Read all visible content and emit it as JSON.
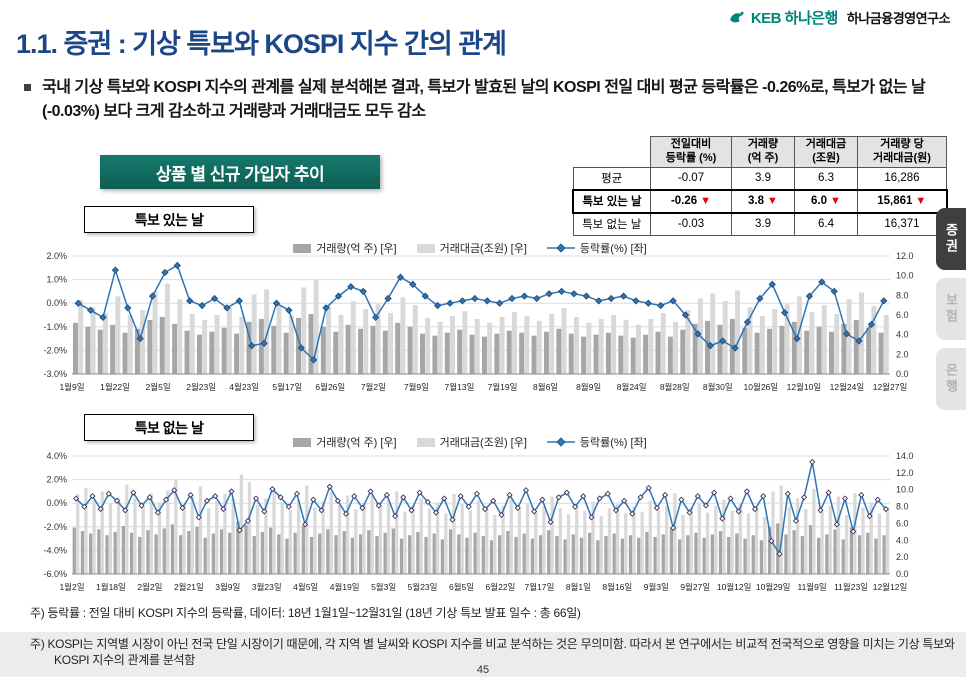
{
  "header": {
    "logo_bank": "KEB 하나은행",
    "logo_institute": "하나금융경영연구소"
  },
  "title": "1.1. 증권 : 기상 특보와 KOSPI 지수 간의 관계",
  "bullet_text": "국내 기상 특보와 KOSPI 지수의 관계를 실제 분석해본 결과, 특보가 발효된 날의 KOSPI 전일 대비 평균 등락률은 -0.26%로, 특보가 없는 날(-0.03%) 보다 크게 감소하고 거래량과 거래대금도 모두 감소",
  "banner": {
    "label": "상품 별 신규 가입자 추이"
  },
  "table": {
    "down_arrow": "▼",
    "headers": [
      "전일대비\n등락률 (%)",
      "거래량\n(억 주)",
      "거래대금\n(조원)",
      "거래량 당\n거래대금(원)"
    ],
    "rows": [
      {
        "label": "평균",
        "values": [
          "-0.07",
          "3.9",
          "6.3",
          "16,286"
        ],
        "bold": false,
        "arrows": false
      },
      {
        "label": "특보 있는 날",
        "values": [
          "-0.26",
          "3.8",
          "6.0",
          "15,861"
        ],
        "bold": true,
        "arrows": true
      },
      {
        "label": "특보 없는 날",
        "values": [
          "-0.03",
          "3.9",
          "6.4",
          "16,371"
        ],
        "bold": false,
        "arrows": false
      }
    ]
  },
  "side_tabs": [
    {
      "label": "증권",
      "active": true
    },
    {
      "label": "보험",
      "active": false
    },
    {
      "label": "은행",
      "active": false
    }
  ],
  "legend": {
    "volume": "거래량(억 주) [우]",
    "value": "거래대금(조원) [우]",
    "rate": "등락률(%) [좌]"
  },
  "footnotes": {
    "footnote1": "주) 등락률 : 전일 대비 KOSPI 지수의 등락률, 데이터: 18년 1월1일~12월31일 (18년 기상 특보 발표 일수 : 총 66일)",
    "footnote2": "주) KOSPI는 지역별 시장이 아닌 전국 단일 시장이기 때문에, 각 지역 별 날씨와 KOSPI 지수를 비교 분석하는 것은 무의미함. 따라서 본 연구에서는 비교적 전국적으로 영향을 미치는 기상 특보와 KOSPI 지수의 관계를 분석함"
  },
  "page_number": "45",
  "chart_data": [
    {
      "type": "bar",
      "subtype": "combo bar+line",
      "name": "warning-days-chart",
      "title": "특보 있는 날",
      "left_axis": {
        "min": -3,
        "max": 2,
        "ticks": [
          "2.0%",
          "1.0%",
          "0.0%",
          "-1.0%",
          "-2.0%",
          "-3.0%"
        ]
      },
      "right_axis": {
        "min": 0,
        "max": 12,
        "ticks": [
          "12.0",
          "10.0",
          "8.0",
          "6.0",
          "4.0",
          "2.0",
          "0.0"
        ]
      },
      "grid": true,
      "x_tick_labels": [
        "1월9일",
        "1월22일",
        "2월5일",
        "2월23일",
        "4월23일",
        "5월17일",
        "6월26일",
        "7월2일",
        "7월9일",
        "7월13일",
        "7월19일",
        "8월6일",
        "8월9일",
        "8월24일",
        "8월28일",
        "8월30일",
        "10월26일",
        "12월10일",
        "12월24일",
        "12월27일"
      ],
      "series": [
        {
          "name": "거래량(억 주) [우]",
          "type": "bar",
          "axis": "right",
          "color": "#a6a6a6",
          "values": [
            5.2,
            4.8,
            4.5,
            5.0,
            4.2,
            4.6,
            5.5,
            5.8,
            5.1,
            4.4,
            4.0,
            4.3,
            4.7,
            4.1,
            5.3,
            5.6,
            4.9,
            4.2,
            5.7,
            6.1,
            4.8,
            4.3,
            5.0,
            4.6,
            4.9,
            4.4,
            5.2,
            4.8,
            4.1,
            3.9,
            4.2,
            4.5,
            4.0,
            3.8,
            4.1,
            4.4,
            4.2,
            3.9,
            4.3,
            4.6,
            4.1,
            3.8,
            4.0,
            4.2,
            3.9,
            3.7,
            4.0,
            4.3,
            3.8,
            4.5,
            5.1,
            5.4,
            5.0,
            5.6,
            4.7,
            4.2,
            4.6,
            4.9,
            5.3,
            4.4,
            4.8,
            4.3,
            5.1,
            5.5,
            4.7,
            4.2
          ]
        },
        {
          "name": "거래대금(조원) [우]",
          "type": "bar",
          "axis": "right",
          "color": "#d9d9d9",
          "values": [
            7.5,
            6.8,
            6.2,
            7.9,
            6.0,
            6.5,
            8.4,
            9.2,
            7.6,
            6.1,
            5.5,
            6.0,
            6.8,
            5.8,
            8.1,
            8.6,
            7.0,
            5.9,
            8.8,
            9.6,
            6.9,
            6.0,
            7.4,
            6.6,
            7.1,
            6.2,
            7.8,
            7.0,
            5.7,
            5.3,
            5.9,
            6.4,
            5.6,
            5.2,
            5.8,
            6.3,
            5.9,
            5.4,
            6.1,
            6.7,
            5.8,
            5.2,
            5.6,
            6.0,
            5.5,
            5.0,
            5.6,
            6.2,
            5.3,
            6.5,
            7.7,
            8.2,
            7.4,
            8.5,
            6.8,
            5.9,
            6.6,
            7.1,
            7.9,
            6.3,
            7.0,
            6.1,
            7.6,
            8.3,
            6.9,
            6.0
          ]
        },
        {
          "name": "등락률(%) [좌]",
          "type": "line",
          "axis": "left",
          "color": "#2e75b6",
          "marker_fill": "#2e75b6",
          "marker_stroke": "#1f4e79",
          "values": [
            0.0,
            -0.3,
            -0.6,
            1.4,
            -0.2,
            -1.5,
            0.3,
            1.3,
            1.6,
            0.1,
            -0.1,
            0.2,
            -0.2,
            0.1,
            -1.8,
            -1.7,
            0.0,
            -0.3,
            -1.9,
            -2.4,
            -0.2,
            0.3,
            0.7,
            0.5,
            -0.6,
            0.2,
            1.1,
            0.8,
            0.3,
            -0.1,
            0.0,
            0.1,
            0.2,
            0.1,
            0.0,
            0.2,
            0.3,
            0.2,
            0.4,
            0.5,
            0.4,
            0.3,
            0.1,
            0.2,
            0.3,
            0.1,
            0.0,
            -0.1,
            0.1,
            -0.5,
            -1.3,
            -1.8,
            -1.6,
            -1.9,
            -0.8,
            0.2,
            0.8,
            -0.4,
            -1.5,
            0.3,
            0.9,
            0.5,
            -1.3,
            -1.6,
            -0.9,
            0.1
          ]
        }
      ]
    },
    {
      "type": "bar",
      "subtype": "combo bar+line",
      "name": "no-warning-days-chart",
      "title": "특보 없는 날",
      "left_axis": {
        "min": -6,
        "max": 4,
        "ticks": [
          "4.0%",
          "2.0%",
          "0.0%",
          "-2.0%",
          "-4.0%",
          "-6.0%"
        ]
      },
      "right_axis": {
        "min": 0,
        "max": 14,
        "ticks": [
          "14.0",
          "12.0",
          "10.0",
          "8.0",
          "6.0",
          "4.0",
          "2.0",
          "0.0"
        ]
      },
      "grid": true,
      "x_tick_labels": [
        "1월2일",
        "1월18일",
        "2월2일",
        "2월21일",
        "3월9일",
        "3월23일",
        "4월5일",
        "4월19일",
        "5월3일",
        "5월23일",
        "6월5일",
        "6월22일",
        "7월17일",
        "8월1일",
        "8월16일",
        "9월3일",
        "9월27일",
        "10월12일",
        "10월29일",
        "11월9일",
        "11월23일",
        "12월12일"
      ],
      "series": [
        {
          "name": "거래량(억 주) [우]",
          "type": "bar",
          "axis": "right",
          "color": "#a6a6a6",
          "values": [
            5.5,
            5.1,
            4.8,
            5.3,
            4.6,
            5.0,
            5.7,
            4.9,
            4.4,
            5.2,
            4.7,
            5.4,
            5.9,
            4.6,
            5.1,
            5.6,
            4.3,
            4.8,
            5.3,
            4.9,
            6.2,
            5.8,
            4.5,
            5.0,
            5.5,
            4.7,
            4.2,
            4.9,
            5.7,
            4.4,
            4.8,
            5.3,
            4.6,
            5.1,
            4.3,
            4.7,
            5.2,
            4.5,
            4.9,
            5.4,
            4.2,
            4.6,
            5.0,
            4.4,
            4.8,
            4.1,
            5.3,
            4.7,
            4.3,
            4.9,
            4.5,
            4.0,
            4.6,
            5.1,
            4.4,
            4.8,
            4.2,
            4.6,
            5.2,
            4.5,
            4.1,
            4.7,
            4.3,
            4.9,
            4.0,
            4.5,
            4.8,
            4.2,
            4.6,
            4.3,
            5.0,
            4.4,
            4.7,
            5.5,
            4.1,
            4.6,
            4.9,
            4.3,
            4.7,
            5.1,
            4.4,
            4.8,
            4.2,
            4.6,
            4.0,
            5.6,
            6.0,
            4.7,
            5.2,
            4.5,
            5.8,
            4.3,
            4.7,
            5.3,
            4.1,
            5.5,
            4.6,
            4.9,
            4.2,
            4.6
          ]
        },
        {
          "name": "거래대금(조원) [우]",
          "type": "bar",
          "axis": "right",
          "color": "#d9d9d9",
          "values": [
            9.5,
            10.2,
            8.8,
            9.8,
            8.4,
            9.1,
            10.6,
            9.0,
            8.1,
            9.6,
            8.5,
            9.9,
            11.2,
            8.3,
            9.2,
            10.4,
            7.8,
            8.7,
            9.5,
            8.9,
            11.8,
            10.9,
            8.2,
            9.0,
            10.1,
            8.5,
            7.6,
            8.8,
            10.5,
            7.9,
            8.6,
            9.7,
            8.2,
            9.3,
            7.7,
            8.4,
            9.4,
            8.0,
            8.8,
            9.8,
            7.4,
            8.2,
            9.0,
            7.8,
            8.5,
            7.2,
            9.5,
            8.3,
            7.6,
            8.7,
            7.9,
            7.0,
            8.1,
            9.0,
            7.7,
            8.4,
            7.3,
            8.0,
            9.2,
            7.8,
            7.1,
            8.2,
            7.5,
            8.6,
            6.9,
            7.8,
            8.3,
            7.2,
            8.0,
            7.4,
            8.7,
            7.6,
            8.1,
            9.6,
            7.0,
            7.9,
            8.5,
            7.3,
            8.1,
            8.8,
            7.5,
            8.3,
            7.2,
            7.9,
            6.8,
            9.8,
            10.5,
            8.0,
            9.0,
            7.7,
            10.1,
            7.4,
            8.1,
            9.2,
            7.0,
            9.6,
            7.9,
            8.5,
            7.2,
            7.9
          ]
        },
        {
          "name": "등락률(%) [좌]",
          "type": "line",
          "axis": "left",
          "color": "#2e75b6",
          "marker_fill": "#ffffff",
          "marker_stroke": "#403152",
          "values": [
            0.4,
            -0.3,
            0.6,
            -0.5,
            0.8,
            0.2,
            -0.6,
            0.9,
            -0.2,
            0.5,
            -0.8,
            0.3,
            1.1,
            -0.4,
            0.7,
            -1.2,
            0.2,
            0.6,
            -0.5,
            1.0,
            -2.3,
            -1.5,
            0.4,
            -0.7,
            1.2,
            0.5,
            -0.3,
            0.8,
            -1.8,
            0.3,
            -0.6,
            1.4,
            0.2,
            -0.9,
            0.6,
            -0.4,
            1.0,
            -0.2,
            0.7,
            -1.1,
            0.5,
            -0.6,
            0.9,
            0.1,
            -0.8,
            0.4,
            -1.4,
            0.6,
            -0.3,
            0.8,
            -0.5,
            0.2,
            -1.0,
            0.7,
            -0.4,
            1.1,
            -0.7,
            0.3,
            -1.6,
            0.5,
            0.9,
            -0.3,
            0.6,
            -1.2,
            0.4,
            0.8,
            -0.6,
            0.2,
            -0.9,
            0.5,
            1.3,
            -0.4,
            0.7,
            -2.1,
            0.3,
            -0.8,
            0.6,
            -0.2,
            0.9,
            -1.3,
            0.4,
            -0.7,
            1.0,
            -0.5,
            0.6,
            -3.2,
            -4.3,
            0.8,
            -1.5,
            0.5,
            3.5,
            -0.6,
            0.9,
            -1.8,
            0.4,
            -2.4,
            0.7,
            -1.1,
            0.3,
            -0.5
          ]
        }
      ]
    }
  ]
}
